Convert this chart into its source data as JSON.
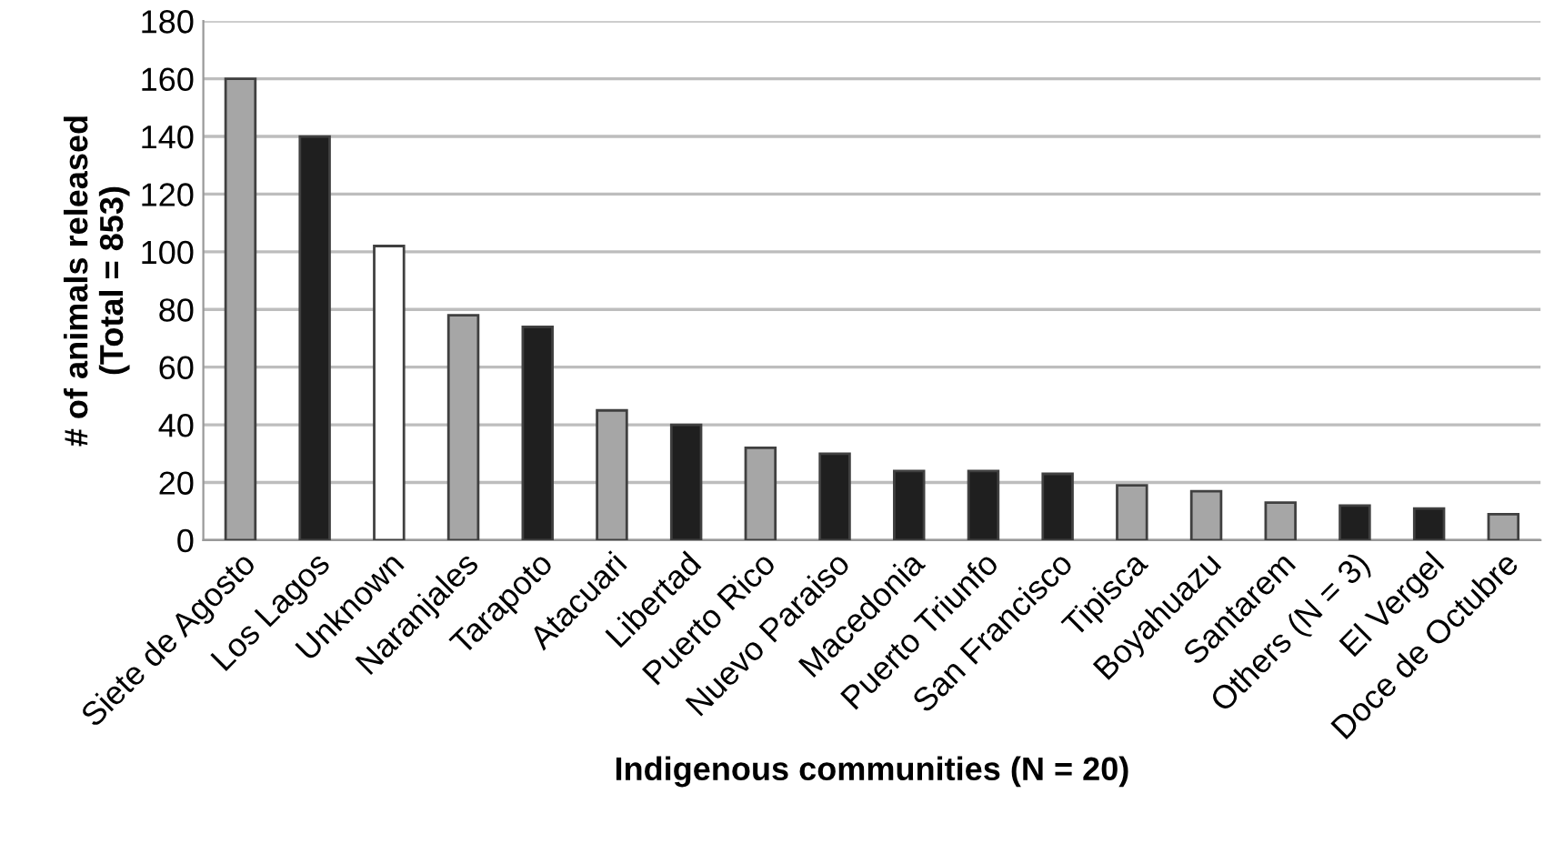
{
  "chart_data": {
    "type": "bar",
    "xlabel": "Indigenous communities (N = 20)",
    "ylabel": "# of animals released\n(Total = 853)",
    "categories": [
      "Siete de Agosto",
      "Los Lagos",
      "Unknown",
      "Naranjales",
      "Tarapoto",
      "Atacuari",
      "Libertad",
      "Puerto Rico",
      "Nuevo Paraiso",
      "Macedonia",
      "Puerto Triunfo",
      "San Francisco",
      "Tipisca",
      "Boyahuazu",
      "Santarem",
      "Others (N = 3)",
      "El Vergel",
      "Doce de Octubre"
    ],
    "values": [
      160,
      140,
      102,
      78,
      74,
      45,
      40,
      32,
      30,
      24,
      24,
      23,
      19,
      17,
      13,
      12,
      11,
      9
    ],
    "colors": [
      "#a6a6a6",
      "#1f1f1f",
      "#ffffff",
      "#a6a6a6",
      "#1f1f1f",
      "#a6a6a6",
      "#1f1f1f",
      "#a6a6a6",
      "#1f1f1f",
      "#1f1f1f",
      "#1f1f1f",
      "#1f1f1f",
      "#a6a6a6",
      "#a6a6a6",
      "#a6a6a6",
      "#1f1f1f",
      "#1f1f1f",
      "#a6a6a6"
    ],
    "ylim": [
      0,
      180
    ],
    "yticks": [
      0,
      20,
      40,
      60,
      80,
      100,
      120,
      140,
      160,
      180
    ],
    "grid": "y",
    "legend": false
  }
}
